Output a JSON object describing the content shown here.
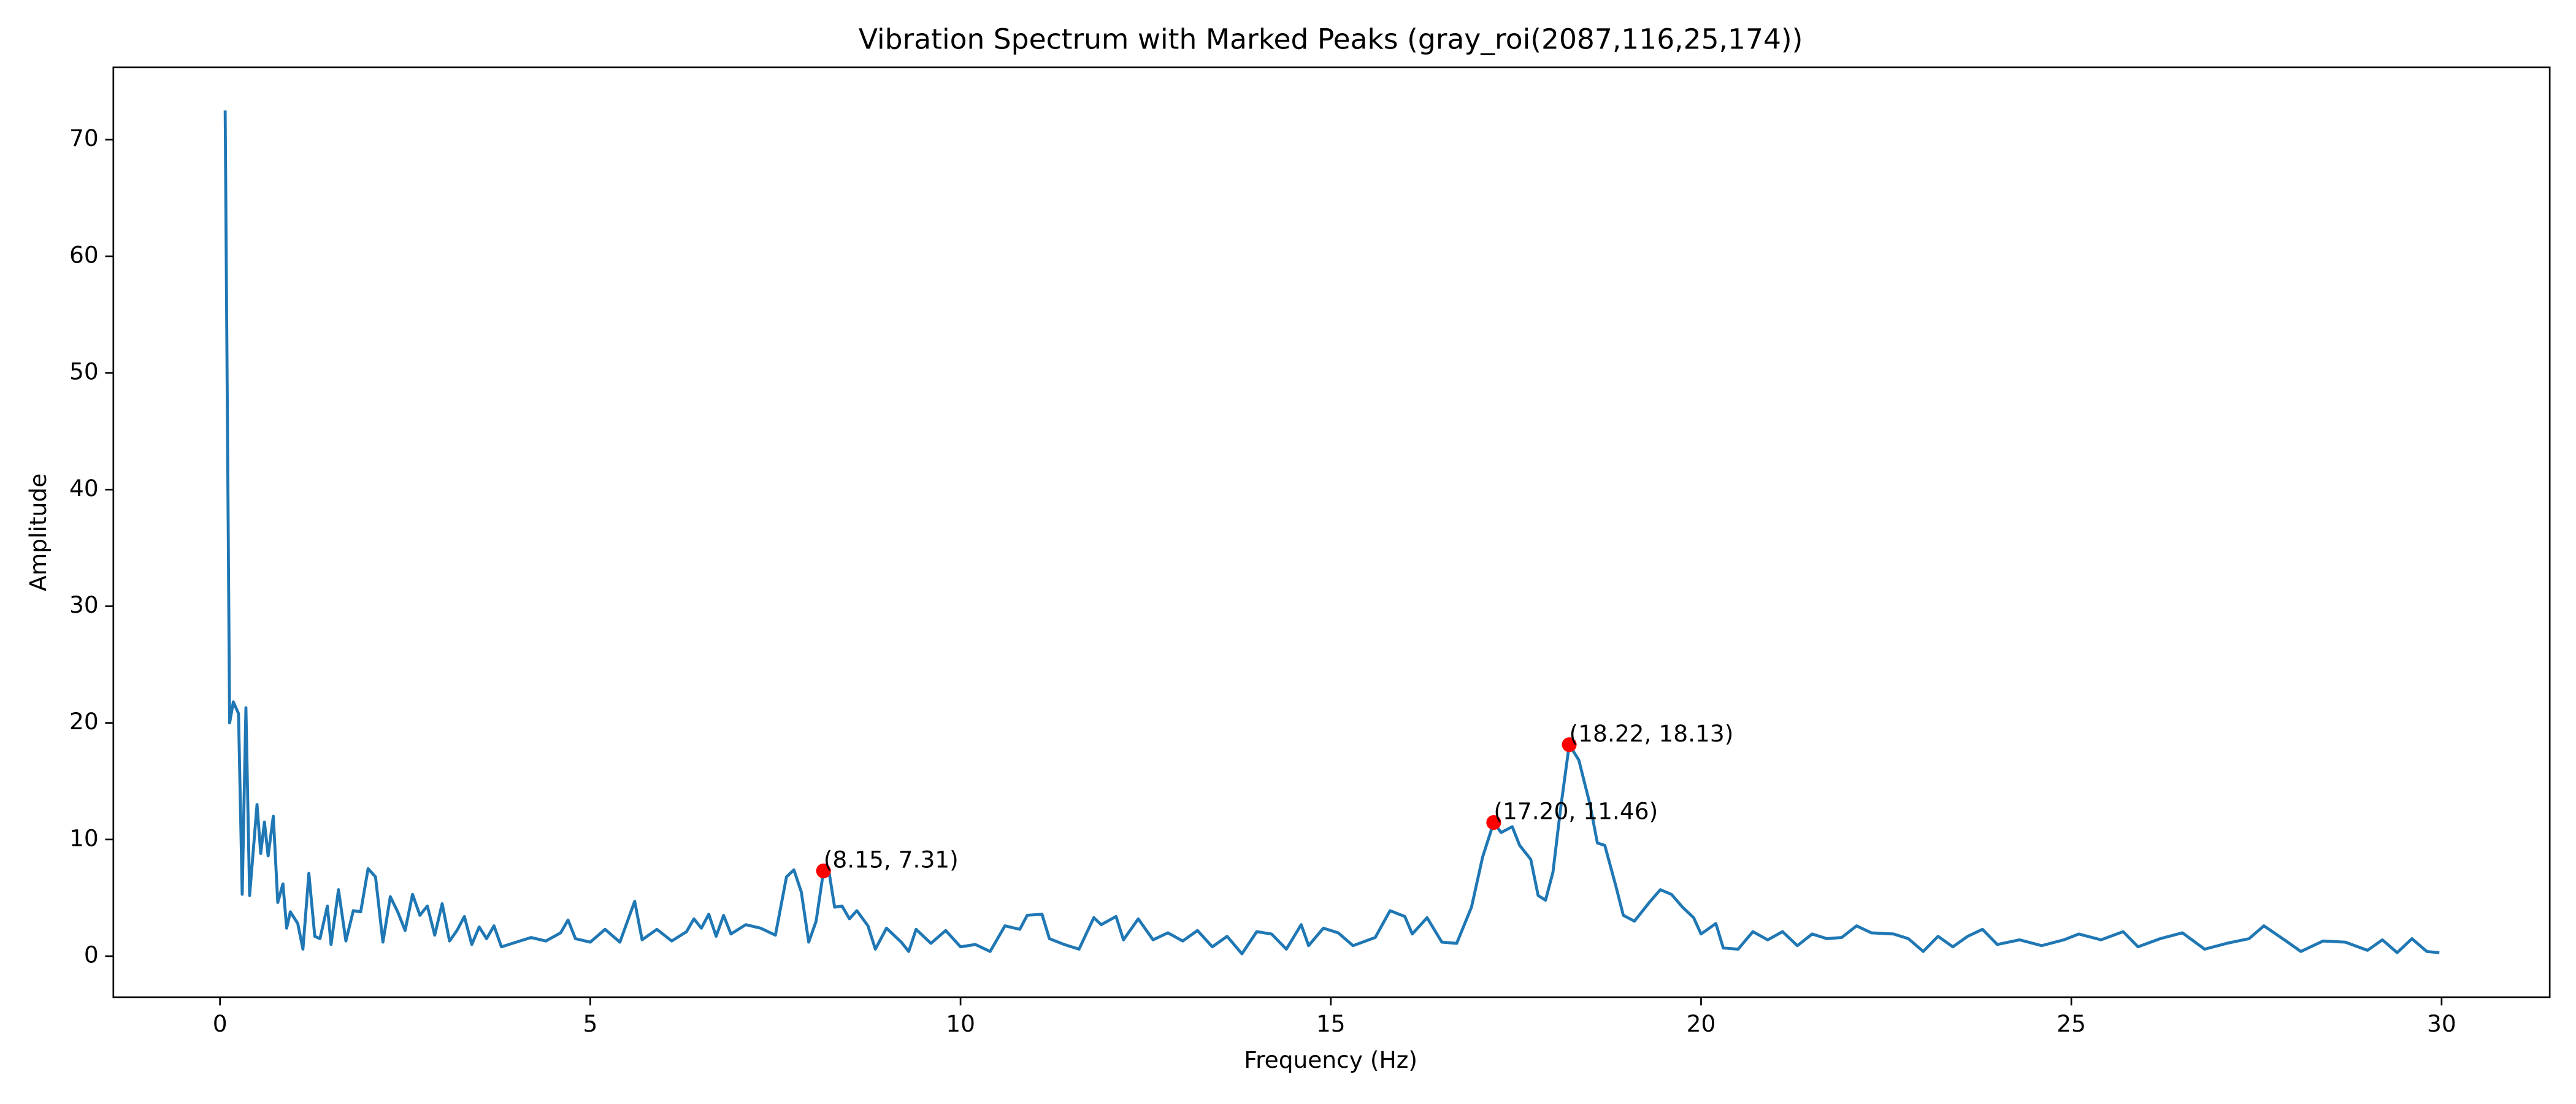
{
  "chart_data": {
    "type": "line",
    "title": "Vibration Spectrum with Marked Peaks (gray_roi(2087,116,25,174))",
    "x_label": "Frequency (Hz)",
    "y_label": "Amplitude",
    "xlim": [
      -1.44,
      31.46
    ],
    "ylim": [
      -3.52,
      76.2
    ],
    "xticks": [
      0,
      5,
      10,
      15,
      20,
      25,
      30
    ],
    "yticks": [
      0,
      10,
      20,
      30,
      40,
      50,
      60,
      70
    ],
    "grid": false,
    "x": [
      0.07,
      0.13,
      0.18,
      0.25,
      0.3,
      0.35,
      0.4,
      0.5,
      0.55,
      0.6,
      0.65,
      0.72,
      0.78,
      0.85,
      0.9,
      0.95,
      1.05,
      1.12,
      1.2,
      1.28,
      1.35,
      1.45,
      1.5,
      1.6,
      1.7,
      1.8,
      1.9,
      2.0,
      2.1,
      2.2,
      2.3,
      2.4,
      2.5,
      2.6,
      2.7,
      2.8,
      2.9,
      3.0,
      3.1,
      3.2,
      3.3,
      3.4,
      3.5,
      3.6,
      3.7,
      3.8,
      4.0,
      4.2,
      4.4,
      4.6,
      4.7,
      4.8,
      5.0,
      5.2,
      5.4,
      5.6,
      5.7,
      5.9,
      6.1,
      6.3,
      6.4,
      6.5,
      6.6,
      6.7,
      6.8,
      6.9,
      7.1,
      7.3,
      7.5,
      7.65,
      7.75,
      7.85,
      7.95,
      8.05,
      8.15,
      8.22,
      8.3,
      8.4,
      8.5,
      8.6,
      8.75,
      8.85,
      9.0,
      9.2,
      9.3,
      9.4,
      9.6,
      9.8,
      10.0,
      10.2,
      10.4,
      10.6,
      10.8,
      10.9,
      11.1,
      11.2,
      11.4,
      11.6,
      11.8,
      11.9,
      12.1,
      12.2,
      12.4,
      12.6,
      12.8,
      13.0,
      13.2,
      13.4,
      13.6,
      13.8,
      14.0,
      14.2,
      14.4,
      14.6,
      14.7,
      14.9,
      15.1,
      15.3,
      15.6,
      15.8,
      16.0,
      16.1,
      16.3,
      16.5,
      16.7,
      16.9,
      17.05,
      17.2,
      17.3,
      17.45,
      17.55,
      17.7,
      17.8,
      17.9,
      18.0,
      18.1,
      18.22,
      18.35,
      18.5,
      18.6,
      18.7,
      18.85,
      18.95,
      19.1,
      19.3,
      19.45,
      19.6,
      19.75,
      19.9,
      20.0,
      20.2,
      20.3,
      20.5,
      20.7,
      20.9,
      21.1,
      21.3,
      21.5,
      21.7,
      21.9,
      22.1,
      22.3,
      22.6,
      22.8,
      23.0,
      23.2,
      23.4,
      23.6,
      23.8,
      24.0,
      24.3,
      24.6,
      24.9,
      25.1,
      25.4,
      25.7,
      25.9,
      26.2,
      26.5,
      26.8,
      27.1,
      27.4,
      27.6,
      27.9,
      28.1,
      28.4,
      28.7,
      29.0,
      29.2,
      29.4,
      29.6,
      29.8,
      29.97
    ],
    "series": [
      {
        "color": "#1f77b4",
        "values": [
          72.5,
          20,
          21.8,
          20.8,
          5.3,
          21.3,
          5.2,
          13,
          8.8,
          11.5,
          8.6,
          12,
          4.6,
          6.2,
          2.4,
          3.8,
          2.8,
          0.6,
          7.1,
          1.7,
          1.5,
          4.3,
          1,
          5.7,
          1.3,
          3.9,
          3.8,
          7.5,
          6.8,
          1.2,
          5.1,
          3.8,
          2.2,
          5.3,
          3.5,
          4.3,
          1.8,
          4.5,
          1.3,
          2.2,
          3.4,
          1,
          2.5,
          1.5,
          2.6,
          0.8,
          1.2,
          1.6,
          1.3,
          2,
          3.1,
          1.5,
          1.2,
          2.3,
          1.2,
          4.7,
          1.4,
          2.3,
          1.3,
          2.1,
          3.2,
          2.4,
          3.6,
          1.7,
          3.5,
          1.9,
          2.7,
          2.4,
          1.8,
          6.8,
          7.4,
          5.5,
          1.2,
          3,
          7.31,
          7.4,
          4.2,
          4.3,
          3.2,
          3.9,
          2.6,
          0.6,
          2.4,
          1.2,
          0.4,
          2.3,
          1.1,
          2.2,
          0.8,
          1,
          0.4,
          2.6,
          2.3,
          3.5,
          3.6,
          1.5,
          1,
          0.6,
          3.3,
          2.7,
          3.4,
          1.4,
          3.2,
          1.4,
          2,
          1.3,
          2.2,
          0.8,
          1.7,
          0.2,
          2.1,
          1.9,
          0.6,
          2.7,
          0.9,
          2.4,
          2,
          0.9,
          1.6,
          3.9,
          3.4,
          1.9,
          3.3,
          1.2,
          1.1,
          4.2,
          8.5,
          11.46,
          10.6,
          11.1,
          9.5,
          8.3,
          5.2,
          4.8,
          7.2,
          12.5,
          18.13,
          16.8,
          13,
          9.7,
          9.5,
          6,
          3.5,
          3,
          4.6,
          5.7,
          5.3,
          4.2,
          3.3,
          1.9,
          2.8,
          0.7,
          0.6,
          2.1,
          1.4,
          2.1,
          0.9,
          1.9,
          1.5,
          1.6,
          2.6,
          2,
          1.9,
          1.5,
          0.4,
          1.7,
          0.8,
          1.7,
          2.3,
          1,
          1.4,
          0.9,
          1.4,
          1.9,
          1.4,
          2.1,
          0.8,
          1.5,
          2,
          0.6,
          1.1,
          1.5,
          2.6,
          1.3,
          0.4,
          1.3,
          1.2,
          0.5,
          1.4,
          0.3,
          1.5,
          0.4,
          0.3
        ]
      }
    ],
    "peaks": {
      "color": "#ff0000",
      "x": [
        8.15,
        17.2,
        18.22
      ],
      "values": [
        7.31,
        11.46,
        18.13
      ],
      "labels": [
        "(8.15, 7.31)",
        "(17.20, 11.46)",
        "(18.22, 18.13)"
      ]
    }
  }
}
